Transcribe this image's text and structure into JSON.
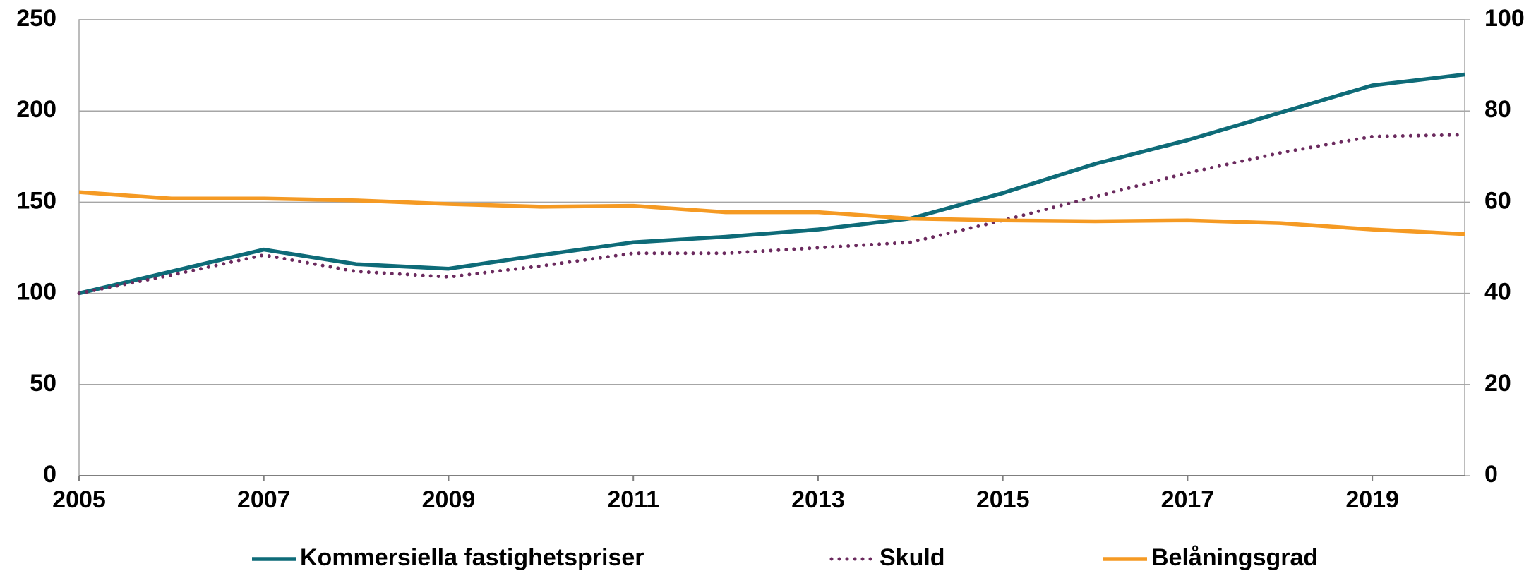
{
  "chart_data": {
    "type": "line",
    "x": [
      2005,
      2006,
      2007,
      2008,
      2009,
      2010,
      2011,
      2012,
      2013,
      2014,
      2015,
      2016,
      2017,
      2018,
      2019,
      2020
    ],
    "xlim": [
      2005,
      2020
    ],
    "xticks": [
      2005,
      2007,
      2009,
      2011,
      2013,
      2015,
      2017,
      2019
    ],
    "ylim": [
      0,
      250
    ],
    "yticks": [
      0,
      50,
      100,
      150,
      200,
      250
    ],
    "y2lim": [
      0,
      100
    ],
    "y2ticks": [
      0,
      20,
      40,
      60,
      80,
      100
    ],
    "grid": true,
    "legend": "bottom",
    "series": [
      {
        "name": "Kommersiella fastighetspriser",
        "color": "#0e6b78",
        "style": "solid",
        "values": [
          100,
          112,
          124,
          116,
          113.5,
          121,
          128,
          131,
          135,
          141,
          155,
          171,
          184,
          199,
          214,
          220
        ]
      },
      {
        "name": "Skuld",
        "color": "#6b2a5e",
        "style": "dotted",
        "values": [
          100,
          110,
          121,
          112,
          109,
          115,
          122,
          122,
          125,
          128,
          140,
          153,
          166,
          177,
          186,
          187
        ]
      },
      {
        "name": "Belåningsgrad",
        "color": "#f59a23",
        "style": "solid",
        "axis": "y2",
        "values": [
          62.2,
          60.8,
          60.8,
          60.4,
          59.6,
          59,
          59.2,
          57.8,
          57.8,
          56.4,
          56,
          55.8,
          56,
          55.4,
          54,
          53
        ]
      }
    ]
  }
}
